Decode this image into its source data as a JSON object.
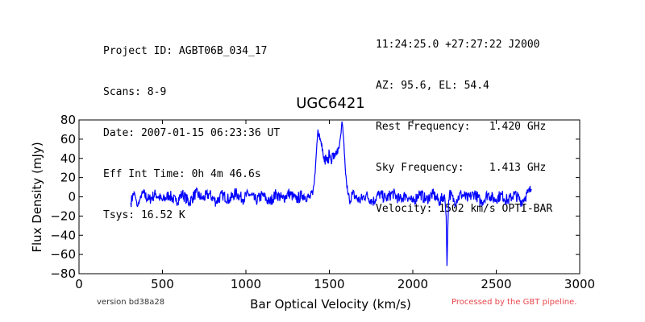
{
  "header_left": [
    "Project ID: AGBT06B_034_17",
    "Scans: 8-9",
    "Date: 2007-01-15 06:23:36 UT",
    "Eff Int Time: 0h 4m 46.6s",
    "Tsys: 16.52 K"
  ],
  "header_right": [
    "11:24:25.0 +27:27:22 J2000",
    "AZ: 95.6, EL: 54.4",
    "Rest Frequency:   1.420 GHz",
    "Sky Frequency:    1.413 GHz",
    "Velocity: 1502 km/s OPTI-BAR"
  ],
  "footer": {
    "version": "version bd38a28",
    "processed": "Processed by the GBT pipeline."
  },
  "colors": {
    "line": "#0000ff",
    "processed_text": "#e8484d"
  },
  "chart_data": {
    "type": "line",
    "title": "UGC6421",
    "xlabel": "Bar Optical Velocity (km/s)",
    "ylabel": "Flux Density (mJy)",
    "xlim": [
      0,
      3000
    ],
    "ylim": [
      -80,
      80
    ],
    "xticks": [
      0,
      500,
      1000,
      1500,
      2000,
      2500,
      3000
    ],
    "yticks": [
      -80,
      -60,
      -40,
      -20,
      0,
      20,
      40,
      60,
      80
    ],
    "grid": false,
    "legend": "none",
    "series": [
      {
        "x": [
          310,
          330,
          350,
          380,
          420,
          460,
          500,
          540,
          580,
          620,
          660,
          700,
          740,
          780,
          820,
          860,
          900,
          940,
          980,
          1020,
          1060,
          1100,
          1140,
          1180,
          1220,
          1260,
          1300,
          1340,
          1380,
          1400,
          1415,
          1425,
          1432,
          1440,
          1450,
          1460,
          1470,
          1480,
          1490,
          1500,
          1510,
          1520,
          1530,
          1540,
          1550,
          1560,
          1570,
          1578,
          1585,
          1595,
          1605,
          1610,
          1620,
          1640,
          1680,
          1720,
          1760,
          1800,
          1840,
          1880,
          1920,
          1960,
          2000,
          2040,
          2080,
          2120,
          2160,
          2190,
          2200,
          2205,
          2210,
          2215,
          2220,
          2250,
          2290,
          2330,
          2370,
          2410,
          2450,
          2490,
          2530,
          2570,
          2610,
          2650,
          2690,
          2710
        ],
        "values": [
          -6,
          5,
          -10,
          4,
          -3,
          3,
          -4,
          2,
          -5,
          3,
          -6,
          4,
          -2,
          3,
          -5,
          2,
          -3,
          4,
          -2,
          3,
          -4,
          2,
          -6,
          3,
          -2,
          4,
          -3,
          2,
          -1,
          2,
          25,
          55,
          70,
          66,
          58,
          50,
          36,
          42,
          35,
          46,
          38,
          44,
          40,
          48,
          45,
          52,
          66,
          76,
          62,
          30,
          10,
          4,
          -3,
          3,
          -4,
          2,
          -5,
          3,
          -2,
          4,
          -3,
          2,
          -6,
          4,
          -3,
          3,
          -5,
          2,
          -20,
          -72,
          -30,
          -3,
          4,
          -5,
          3,
          -2,
          4,
          -6,
          3,
          -3,
          2,
          -4,
          3,
          -5,
          4,
          8
        ]
      }
    ]
  }
}
